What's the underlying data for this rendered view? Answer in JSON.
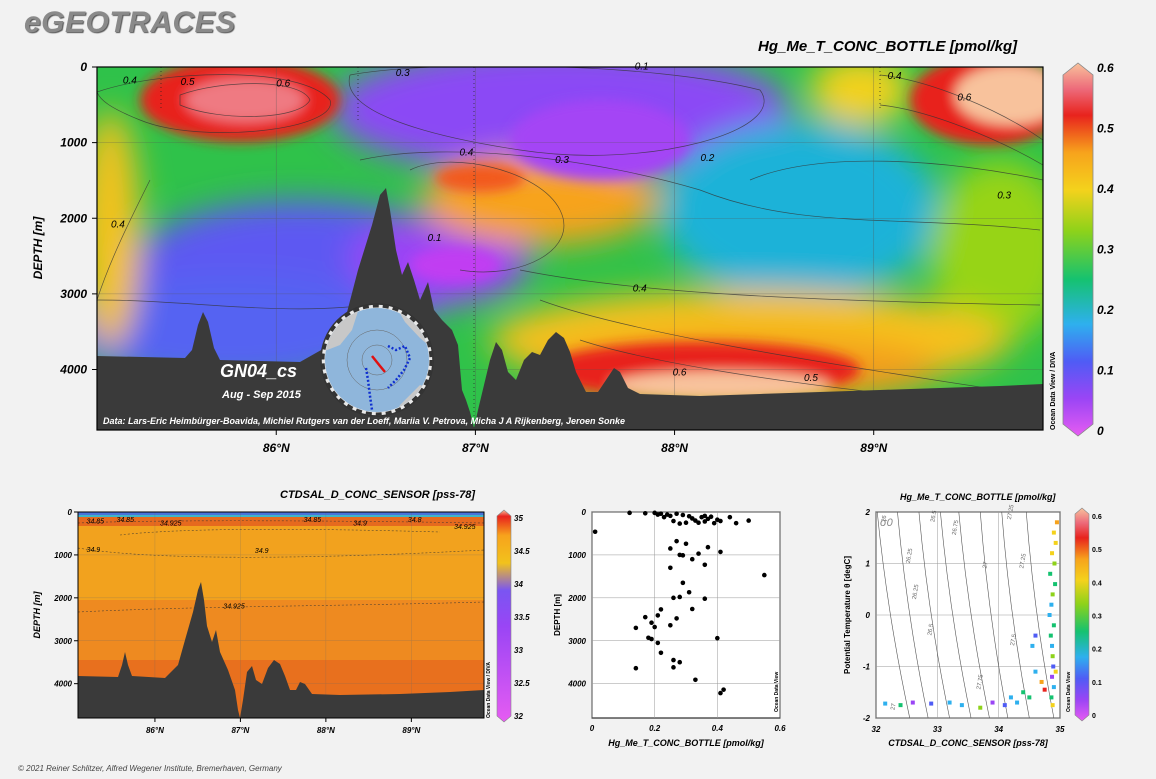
{
  "brand": "eGEOTRACES",
  "copyright": "© 2021 Reiner Schlitzer, Alfred Wegener Institute, Bremerhaven, Germany",
  "colors": {
    "background": "#f2f2f2",
    "bathymetry": "#3a3a3a"
  },
  "main_section": {
    "title": "Hg_Me_T_CONC_BOTTLE [pmol/kg]",
    "section_label": "GN04_cs",
    "date_label": "Aug - Sep 2015",
    "credit": "Data: Lars-Eric Heimbürger-Boavida, Michiel Rutgers van der Loeff, Mariia V. Petrova, Micha J A Rijkenberg, Jeroen Sonke",
    "odv_label": "Ocean Data View / DIVA",
    "chart_data": {
      "type": "heatmap",
      "ylabel": "DEPTH [m]",
      "x_ticks": [
        "86°N",
        "87°N",
        "88°N",
        "89°N"
      ],
      "x_tick_values": [
        86,
        87,
        88,
        89
      ],
      "xlim": [
        85.1,
        89.85
      ],
      "y_ticks": [
        "0",
        "1000",
        "2000",
        "3000",
        "4000"
      ],
      "y_tick_values": [
        0,
        1000,
        2000,
        3000,
        4000
      ],
      "ylim": [
        0,
        4800
      ],
      "colorbar": {
        "ticks": [
          "0",
          "0.1",
          "0.2",
          "0.3",
          "0.4",
          "0.5",
          "0.6"
        ],
        "min": 0,
        "max": 0.6
      },
      "contour_labels": [
        {
          "text": "0.4",
          "lat": 85.23,
          "depth": 220
        },
        {
          "text": "0.5",
          "lat": 85.52,
          "depth": 240
        },
        {
          "text": "0.6",
          "lat": 86.0,
          "depth": 260
        },
        {
          "text": "0.3",
          "lat": 86.6,
          "depth": 120
        },
        {
          "text": "0.1",
          "lat": 87.8,
          "depth": 30
        },
        {
          "text": "0.4",
          "lat": 89.07,
          "depth": 160
        },
        {
          "text": "0.6",
          "lat": 89.42,
          "depth": 440
        },
        {
          "text": "0.4",
          "lat": 86.92,
          "depth": 1170
        },
        {
          "text": "0.3",
          "lat": 87.4,
          "depth": 1270
        },
        {
          "text": "0.2",
          "lat": 88.13,
          "depth": 1240
        },
        {
          "text": "0.3",
          "lat": 89.62,
          "depth": 1740
        },
        {
          "text": "0.4",
          "lat": 85.17,
          "depth": 2120
        },
        {
          "text": "0.1",
          "lat": 86.76,
          "depth": 2300
        },
        {
          "text": "0.4",
          "lat": 87.79,
          "depth": 2970
        },
        {
          "text": "0.6",
          "lat": 87.99,
          "depth": 4080
        },
        {
          "text": "0.5",
          "lat": 88.65,
          "depth": 4150
        }
      ]
    }
  },
  "salinity_section": {
    "title": "CTDSAL_D_CONC_SENSOR [pss-78]",
    "odv_label": "Ocean Data View / DIVA",
    "chart_data": {
      "type": "heatmap",
      "ylabel": "DEPTH [m]",
      "x_ticks": [
        "86°N",
        "87°N",
        "88°N",
        "89°N"
      ],
      "x_tick_values": [
        86,
        87,
        88,
        89
      ],
      "xlim": [
        85.1,
        89.85
      ],
      "y_ticks": [
        "0",
        "1000",
        "2000",
        "3000",
        "4000"
      ],
      "y_tick_values": [
        0,
        1000,
        2000,
        3000,
        4000
      ],
      "ylim": [
        0,
        4800
      ],
      "colorbar": {
        "ticks": [
          "35",
          "34.5",
          "34",
          "33.5",
          "33",
          "32.5",
          "32"
        ],
        "min": 32,
        "max": 35
      },
      "contour_labels": [
        {
          "text": "34.85",
          "lat": 85.2,
          "depth": 270
        },
        {
          "text": "34.85",
          "lat": 85.55,
          "depth": 230
        },
        {
          "text": "34.925",
          "lat": 86.06,
          "depth": 320
        },
        {
          "text": "34.85",
          "lat": 87.74,
          "depth": 230
        },
        {
          "text": "34.9",
          "lat": 88.32,
          "depth": 320
        },
        {
          "text": "34.8",
          "lat": 88.96,
          "depth": 230
        },
        {
          "text": "34.925",
          "lat": 89.5,
          "depth": 400
        },
        {
          "text": "34.9",
          "lat": 85.2,
          "depth": 930
        },
        {
          "text": "34.9",
          "lat": 87.17,
          "depth": 950
        },
        {
          "text": "34.925",
          "lat": 86.8,
          "depth": 2250
        }
      ]
    }
  },
  "scatter_plot": {
    "odv_label": "Ocean Data View",
    "chart_data": {
      "type": "scatter",
      "xlabel": "Hg_Me_T_CONC_BOTTLE [pmol/kg]",
      "ylabel": "DEPTH [m]",
      "xlim": [
        0,
        0.6
      ],
      "ylim": [
        0,
        4800
      ],
      "x_ticks": [
        "0",
        "0.2",
        "0.4",
        "0.6"
      ],
      "x_tick_values": [
        0,
        0.2,
        0.4,
        0.6
      ],
      "y_ticks": [
        "0",
        "1000",
        "2000",
        "3000",
        "4000"
      ],
      "y_tick_values": [
        0,
        1000,
        2000,
        3000,
        4000
      ],
      "points": [
        [
          0.12,
          20
        ],
        [
          0.17,
          30
        ],
        [
          0.2,
          20
        ],
        [
          0.22,
          40
        ],
        [
          0.24,
          60
        ],
        [
          0.25,
          90
        ],
        [
          0.27,
          40
        ],
        [
          0.29,
          70
        ],
        [
          0.31,
          100
        ],
        [
          0.32,
          150
        ],
        [
          0.33,
          200
        ],
        [
          0.34,
          250
        ],
        [
          0.35,
          120
        ],
        [
          0.36,
          220
        ],
        [
          0.37,
          160
        ],
        [
          0.38,
          110
        ],
        [
          0.39,
          260
        ],
        [
          0.4,
          180
        ],
        [
          0.41,
          210
        ],
        [
          0.44,
          120
        ],
        [
          0.46,
          260
        ],
        [
          0.5,
          200
        ],
        [
          0.3,
          250
        ],
        [
          0.28,
          270
        ],
        [
          0.26,
          210
        ],
        [
          0.23,
          120
        ],
        [
          0.21,
          60
        ],
        [
          0.36,
          90
        ],
        [
          0.01,
          460
        ],
        [
          0.27,
          680
        ],
        [
          0.3,
          740
        ],
        [
          0.25,
          850
        ],
        [
          0.28,
          1000
        ],
        [
          0.29,
          1010
        ],
        [
          0.34,
          970
        ],
        [
          0.37,
          820
        ],
        [
          0.36,
          1230
        ],
        [
          0.32,
          1100
        ],
        [
          0.25,
          1300
        ],
        [
          0.41,
          930
        ],
        [
          0.55,
          1470
        ],
        [
          0.29,
          1650
        ],
        [
          0.31,
          1870
        ],
        [
          0.26,
          2000
        ],
        [
          0.28,
          1980
        ],
        [
          0.36,
          2020
        ],
        [
          0.22,
          2270
        ],
        [
          0.32,
          2260
        ],
        [
          0.17,
          2450
        ],
        [
          0.21,
          2410
        ],
        [
          0.19,
          2580
        ],
        [
          0.27,
          2480
        ],
        [
          0.14,
          2700
        ],
        [
          0.2,
          2680
        ],
        [
          0.25,
          2640
        ],
        [
          0.4,
          2940
        ],
        [
          0.19,
          2960
        ],
        [
          0.21,
          3050
        ],
        [
          0.22,
          3280
        ],
        [
          0.28,
          3500
        ],
        [
          0.26,
          3620
        ],
        [
          0.14,
          3640
        ],
        [
          0.33,
          3910
        ],
        [
          0.42,
          4140
        ],
        [
          0.41,
          4220
        ],
        [
          0.26,
          3450
        ],
        [
          0.18,
          2930
        ]
      ]
    }
  },
  "ts_plot": {
    "title": "Hg_Me_T_CONC_BOTTLE [pmol/kg]",
    "sigma_label": "σ0",
    "odv_label": "Ocean Data View",
    "chart_data": {
      "type": "scatter",
      "xlabel": "CTDSAL_D_CONC_SENSOR [pss-78]",
      "ylabel": "Potential Temperature θ [degC]",
      "xlim": [
        32,
        35
      ],
      "ylim": [
        -2,
        2
      ],
      "x_ticks": [
        "32",
        "33",
        "34",
        "35"
      ],
      "x_tick_values": [
        32,
        33,
        34,
        35
      ],
      "y_ticks": [
        "2",
        "1",
        "0",
        "-1",
        "-2"
      ],
      "y_tick_values": [
        2,
        1,
        0,
        -1,
        -2
      ],
      "colorbar": {
        "ticks": [
          "0.6",
          "0.5",
          "0.4",
          "0.3",
          "0.2",
          "0.1",
          "0"
        ],
        "min": 0,
        "max": 0.6
      },
      "isopycnal_labels": [
        "26",
        "26.25",
        "26.5",
        "26.75",
        "27",
        "27.25",
        "27.5",
        "27.75",
        "26.5",
        "26.25",
        "27.25",
        "27"
      ],
      "points": [
        [
          34.9,
          1.6,
          0.45
        ],
        [
          34.93,
          1.4,
          0.42
        ],
        [
          34.87,
          1.2,
          0.4
        ],
        [
          34.91,
          1.0,
          0.38
        ],
        [
          34.84,
          0.8,
          0.3
        ],
        [
          34.92,
          0.6,
          0.28
        ],
        [
          34.88,
          0.4,
          0.33
        ],
        [
          34.86,
          0.2,
          0.25
        ],
        [
          34.83,
          0.0,
          0.22
        ],
        [
          34.9,
          -0.2,
          0.3
        ],
        [
          34.85,
          -0.4,
          0.27
        ],
        [
          34.87,
          -0.6,
          0.2
        ],
        [
          34.88,
          -0.8,
          0.35
        ],
        [
          34.89,
          -1.0,
          0.15
        ],
        [
          34.87,
          -1.2,
          0.1
        ],
        [
          34.9,
          -1.4,
          0.25
        ],
        [
          34.86,
          -1.6,
          0.3
        ],
        [
          34.88,
          -1.75,
          0.4
        ],
        [
          34.7,
          -1.3,
          0.5
        ],
        [
          34.6,
          -1.1,
          0.18
        ],
        [
          34.55,
          -0.6,
          0.22
        ],
        [
          34.6,
          -0.4,
          0.12
        ],
        [
          34.5,
          -1.6,
          0.3
        ],
        [
          34.3,
          -1.7,
          0.2
        ],
        [
          34.1,
          -1.75,
          0.15
        ],
        [
          33.9,
          -1.7,
          0.1
        ],
        [
          33.7,
          -1.8,
          0.35
        ],
        [
          33.4,
          -1.75,
          0.2
        ],
        [
          33.2,
          -1.7,
          0.25
        ],
        [
          32.9,
          -1.72,
          0.12
        ],
        [
          32.6,
          -1.7,
          0.08
        ],
        [
          32.4,
          -1.75,
          0.3
        ],
        [
          32.15,
          -1.72,
          0.18
        ],
        [
          34.75,
          -1.45,
          0.55
        ],
        [
          34.95,
          1.8,
          0.5
        ],
        [
          34.93,
          -1.1,
          0.45
        ],
        [
          34.2,
          -1.6,
          0.22
        ],
        [
          34.4,
          -1.5,
          0.32
        ]
      ]
    }
  }
}
